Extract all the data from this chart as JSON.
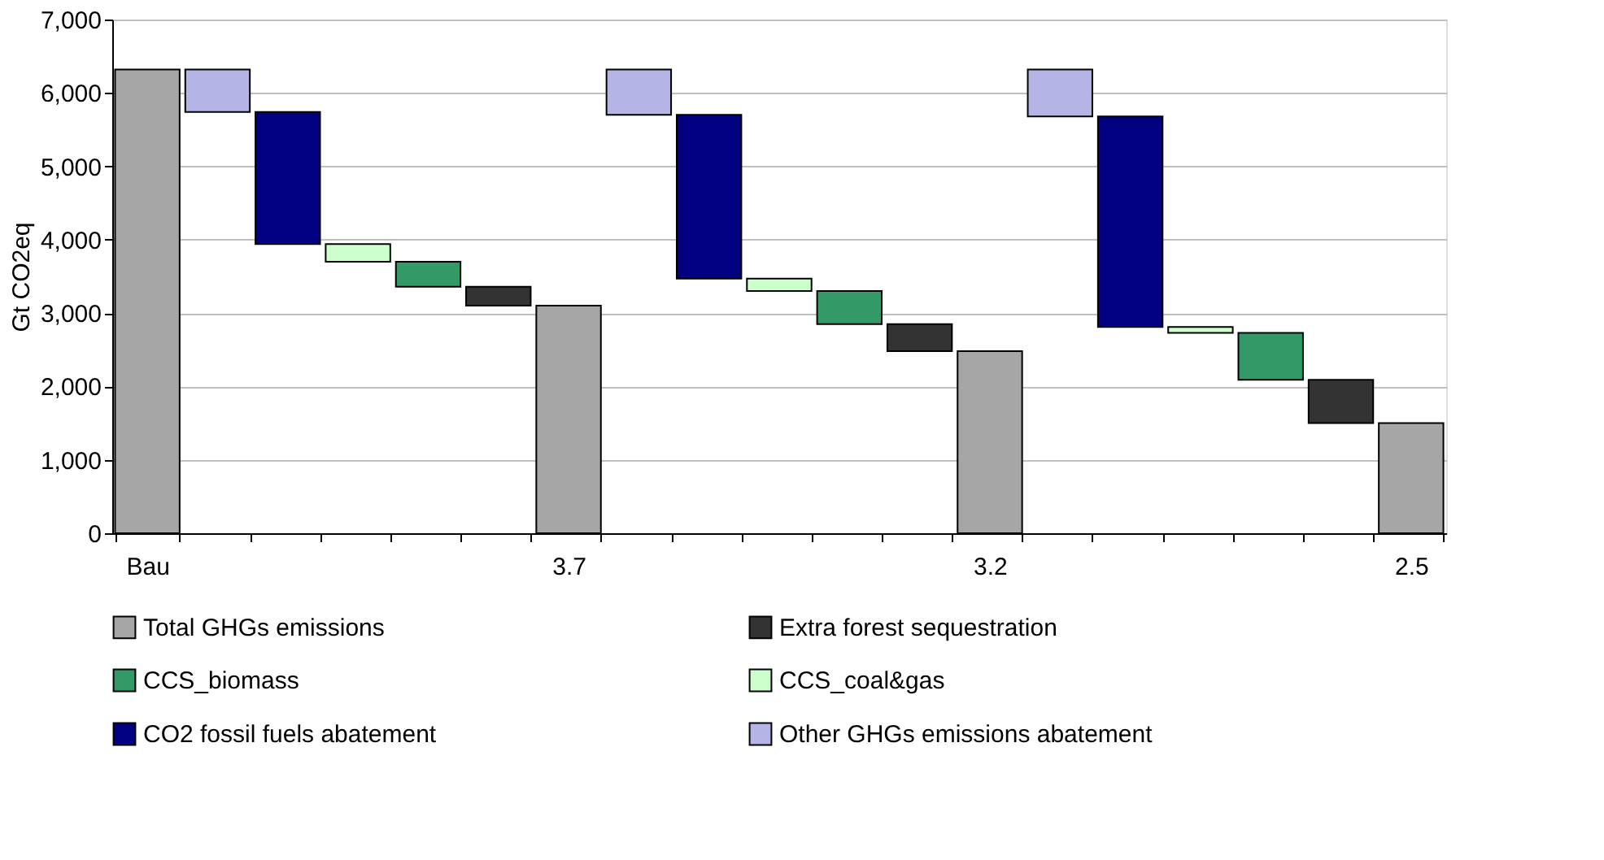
{
  "chart_data": {
    "type": "bar",
    "ylabel": "Gt CO2eq",
    "categories": [
      "Bau",
      null,
      null,
      null,
      null,
      null,
      "3.7",
      null,
      null,
      null,
      null,
      null,
      "3.2",
      null,
      null,
      null,
      null,
      null,
      "2.5"
    ],
    "series": [
      {
        "name": "Total GHGs emissions",
        "color": "#a6a6a6",
        "values": [
          6320,
          null,
          null,
          null,
          null,
          null,
          3100,
          null,
          null,
          null,
          null,
          null,
          2480,
          null,
          null,
          null,
          null,
          null,
          1500
        ],
        "base": [
          0,
          null,
          null,
          null,
          null,
          null,
          0,
          null,
          null,
          null,
          null,
          null,
          0,
          null,
          null,
          null,
          null,
          null,
          0
        ]
      },
      {
        "name": "Extra forest sequestration",
        "color": "#333333",
        "values": [
          null,
          null,
          null,
          null,
          null,
          260,
          null,
          null,
          null,
          null,
          null,
          370,
          null,
          null,
          null,
          null,
          null,
          590,
          null
        ],
        "base": [
          null,
          null,
          null,
          null,
          null,
          3100,
          null,
          null,
          null,
          null,
          null,
          2480,
          null,
          null,
          null,
          null,
          null,
          1500,
          null
        ]
      },
      {
        "name": "CCS_biomass",
        "color": "#339966",
        "values": [
          null,
          null,
          null,
          null,
          340,
          null,
          null,
          null,
          null,
          null,
          450,
          null,
          null,
          null,
          null,
          null,
          640,
          null,
          null
        ],
        "base": [
          null,
          null,
          null,
          null,
          3360,
          null,
          null,
          null,
          null,
          null,
          2850,
          null,
          null,
          null,
          null,
          null,
          2090,
          null,
          null
        ]
      },
      {
        "name": "CCS_coal&gas",
        "color": "#ccffcc",
        "values": [
          null,
          null,
          null,
          240,
          null,
          null,
          null,
          null,
          null,
          170,
          null,
          null,
          null,
          null,
          null,
          80,
          null,
          null,
          null
        ],
        "base": [
          null,
          null,
          null,
          3700,
          null,
          null,
          null,
          null,
          null,
          3300,
          null,
          null,
          null,
          null,
          null,
          2730,
          null,
          null,
          null
        ]
      },
      {
        "name": "CO2 fossil fuels abatement",
        "color": "#000080",
        "values": [
          null,
          null,
          1800,
          null,
          null,
          null,
          null,
          null,
          2230,
          null,
          null,
          null,
          null,
          null,
          2870,
          null,
          null,
          null,
          null
        ],
        "base": [
          null,
          null,
          3940,
          null,
          null,
          null,
          null,
          null,
          3470,
          null,
          null,
          null,
          null,
          null,
          2810,
          null,
          null,
          null,
          null
        ]
      },
      {
        "name": "Other GHGs emissions abatement",
        "color": "#b4b4e6",
        "values": [
          null,
          580,
          null,
          null,
          null,
          null,
          null,
          620,
          null,
          null,
          null,
          null,
          null,
          640,
          null,
          null,
          null,
          null,
          null
        ],
        "base": [
          null,
          5740,
          null,
          null,
          null,
          null,
          null,
          5700,
          null,
          null,
          null,
          null,
          null,
          5680,
          null,
          null,
          null,
          null,
          null
        ]
      }
    ],
    "ylim": [
      0,
      7000
    ],
    "yticks": [
      0,
      {
        "value": 1000,
        "label": "1,000"
      },
      {
        "value": 2000,
        "label": "2,000"
      },
      {
        "value": 3000,
        "label": "3,000"
      },
      {
        "value": 4000,
        "label": "4,000"
      },
      {
        "value": 5000,
        "label": "5,000"
      },
      {
        "value": 6000,
        "label": "6,000"
      },
      {
        "value": 7000,
        "label": "7,000"
      }
    ],
    "grid": "y",
    "legend": "bottom"
  }
}
